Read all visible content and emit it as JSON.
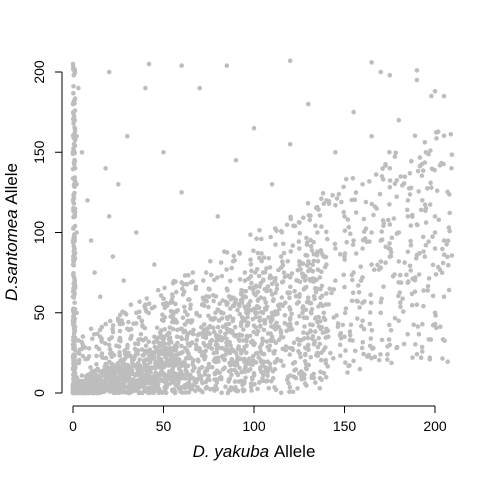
{
  "chart_data": {
    "type": "scatter",
    "title": "",
    "xlabel_italic": "D. yakuba",
    "xlabel_rest": "Allele",
    "ylabel_italic": "D.santomea",
    "ylabel_rest": "Allele",
    "xlim": [
      0,
      200
    ],
    "ylim": [
      0,
      200
    ],
    "xticks": [
      0,
      50,
      100,
      150,
      200
    ],
    "yticks": [
      0,
      50,
      100,
      150,
      200
    ],
    "grid": false,
    "point_color": "#bdbdbd",
    "series": [
      {
        "points": [
          [
            0,
            0
          ],
          [
            3,
            2
          ],
          [
            5,
            1
          ],
          [
            8,
            4
          ],
          [
            10,
            3
          ],
          [
            12,
            6
          ],
          [
            15,
            2
          ],
          [
            18,
            5
          ],
          [
            20,
            8
          ],
          [
            22,
            3
          ],
          [
            25,
            6
          ],
          [
            28,
            9
          ],
          [
            30,
            4
          ],
          [
            33,
            7
          ],
          [
            35,
            12
          ],
          [
            38,
            5
          ],
          [
            40,
            10
          ],
          [
            42,
            14
          ],
          [
            45,
            8
          ],
          [
            48,
            16
          ],
          [
            50,
            11
          ],
          [
            52,
            20
          ],
          [
            55,
            15
          ],
          [
            58,
            24
          ],
          [
            60,
            18
          ],
          [
            62,
            28
          ],
          [
            65,
            22
          ],
          [
            68,
            30
          ],
          [
            70,
            26
          ],
          [
            72,
            35
          ],
          [
            75,
            30
          ],
          [
            78,
            38
          ],
          [
            80,
            33
          ],
          [
            85,
            40
          ],
          [
            90,
            36
          ],
          [
            95,
            45
          ],
          [
            100,
            42
          ],
          [
            105,
            50
          ],
          [
            110,
            46
          ],
          [
            115,
            55
          ],
          [
            120,
            52
          ],
          [
            125,
            60
          ],
          [
            130,
            57
          ],
          [
            135,
            65
          ],
          [
            140,
            62
          ],
          [
            145,
            70
          ],
          [
            150,
            66
          ],
          [
            155,
            75
          ],
          [
            160,
            72
          ],
          [
            165,
            80
          ],
          [
            170,
            78
          ],
          [
            175,
            85
          ],
          [
            180,
            82
          ],
          [
            185,
            88
          ],
          [
            190,
            86
          ],
          [
            195,
            92
          ],
          [
            200,
            90
          ],
          [
            0,
            205
          ],
          [
            0,
            180
          ],
          [
            0,
            150
          ],
          [
            0,
            120
          ],
          [
            0,
            95
          ],
          [
            0,
            80
          ],
          [
            0,
            60
          ],
          [
            0,
            45
          ],
          [
            0,
            30
          ],
          [
            0,
            15
          ],
          [
            1,
            170
          ],
          [
            1,
            140
          ],
          [
            1,
            110
          ],
          [
            1,
            70
          ],
          [
            2,
            160
          ],
          [
            2,
            130
          ],
          [
            2,
            100
          ],
          [
            2,
            50
          ],
          [
            3,
            190
          ],
          [
            3,
            25
          ],
          [
            5,
            150
          ],
          [
            8,
            120
          ],
          [
            10,
            95
          ],
          [
            12,
            75
          ],
          [
            15,
            60
          ],
          [
            18,
            140
          ],
          [
            20,
            110
          ],
          [
            22,
            85
          ],
          [
            25,
            130
          ],
          [
            28,
            70
          ],
          [
            30,
            160
          ],
          [
            32,
            55
          ],
          [
            35,
            100
          ],
          [
            38,
            45
          ],
          [
            40,
            190
          ],
          [
            45,
            80
          ],
          [
            50,
            150
          ],
          [
            55,
            60
          ],
          [
            60,
            125
          ],
          [
            65,
            45
          ],
          [
            70,
            190
          ],
          [
            75,
            65
          ],
          [
            80,
            110
          ],
          [
            85,
            55
          ],
          [
            90,
            145
          ],
          [
            95,
            75
          ],
          [
            100,
            165
          ],
          [
            105,
            70
          ],
          [
            110,
            130
          ],
          [
            115,
            85
          ],
          [
            120,
            155
          ],
          [
            125,
            90
          ],
          [
            130,
            180
          ],
          [
            135,
            100
          ],
          [
            140,
            120
          ],
          [
            145,
            150
          ],
          [
            150,
            110
          ],
          [
            155,
            175
          ],
          [
            160,
            130
          ],
          [
            165,
            160
          ],
          [
            170,
            200
          ],
          [
            175,
            140
          ],
          [
            180,
            170
          ],
          [
            185,
            120
          ],
          [
            190,
            195
          ],
          [
            195,
            150
          ],
          [
            198,
            185
          ],
          [
            200,
            110
          ],
          [
            205,
            60
          ],
          [
            205,
            185
          ],
          [
            10,
            40
          ],
          [
            15,
            35
          ],
          [
            20,
            30
          ],
          [
            25,
            45
          ],
          [
            30,
            40
          ],
          [
            35,
            50
          ],
          [
            40,
            55
          ],
          [
            45,
            35
          ],
          [
            50,
            45
          ],
          [
            55,
            50
          ],
          [
            60,
            40
          ],
          [
            65,
            55
          ],
          [
            70,
            48
          ],
          [
            75,
            60
          ],
          [
            80,
            52
          ],
          [
            85,
            65
          ],
          [
            90,
            58
          ],
          [
            95,
            70
          ],
          [
            100,
            62
          ],
          [
            105,
            75
          ],
          [
            110,
            68
          ],
          [
            115,
            78
          ],
          [
            120,
            72
          ],
          [
            125,
            82
          ],
          [
            130,
            76
          ],
          [
            135,
            88
          ],
          [
            140,
            80
          ],
          [
            145,
            90
          ],
          [
            150,
            85
          ],
          [
            155,
            95
          ],
          [
            160,
            90
          ],
          [
            165,
            100
          ],
          [
            170,
            95
          ],
          [
            175,
            105
          ],
          [
            180,
            100
          ],
          [
            185,
            110
          ],
          [
            190,
            105
          ],
          [
            195,
            115
          ],
          [
            200,
            100
          ],
          [
            205,
            95
          ],
          [
            60,
            10
          ],
          [
            70,
            15
          ],
          [
            80,
            20
          ],
          [
            90,
            25
          ],
          [
            100,
            30
          ],
          [
            110,
            35
          ],
          [
            120,
            40
          ],
          [
            130,
            30
          ],
          [
            140,
            40
          ],
          [
            150,
            35
          ],
          [
            160,
            45
          ],
          [
            170,
            50
          ],
          [
            180,
            45
          ],
          [
            190,
            55
          ],
          [
            200,
            50
          ],
          [
            95,
            15
          ],
          [
            115,
            20
          ],
          [
            135,
            25
          ],
          [
            155,
            20
          ],
          [
            175,
            30
          ],
          [
            42,
            205
          ],
          [
            85,
            204
          ],
          [
            120,
            207
          ],
          [
            165,
            206
          ],
          [
            190,
            201
          ],
          [
            200,
            188
          ],
          [
            175,
            198
          ],
          [
            60,
            204
          ],
          [
            20,
            200
          ],
          [
            110,
            210
          ]
        ]
      }
    ]
  }
}
